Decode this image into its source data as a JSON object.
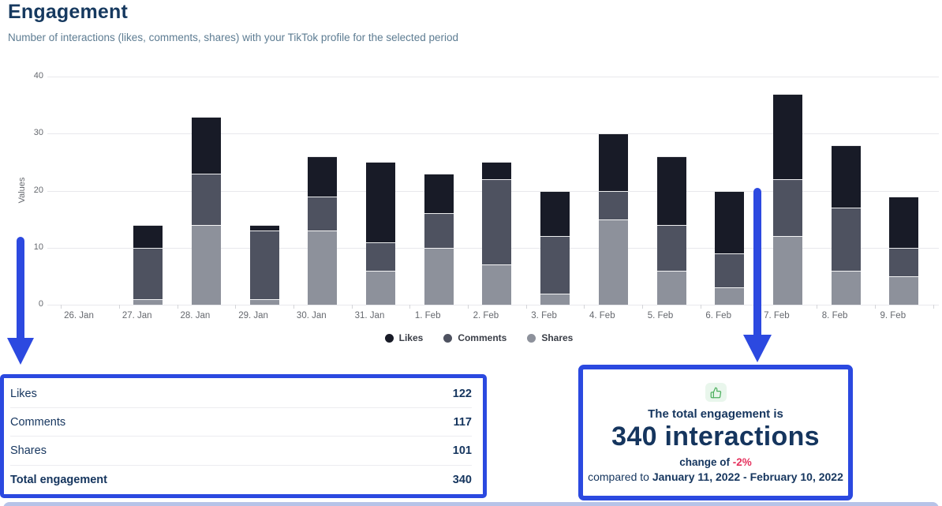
{
  "header": {
    "title": "Engagement",
    "subtitle": "Number of interactions (likes, comments, shares) with your TikTok profile for the selected period"
  },
  "chart_data": {
    "type": "bar",
    "stacked": true,
    "title": "Engagement",
    "xlabel": "",
    "ylabel": "Values",
    "ylim": [
      0,
      40
    ],
    "yticks": [
      0,
      10,
      20,
      30,
      40
    ],
    "grid": true,
    "legend_position": "bottom",
    "categories": [
      "26. Jan",
      "27. Jan",
      "28. Jan",
      "29. Jan",
      "30. Jan",
      "31. Jan",
      "1. Feb",
      "2. Feb",
      "3. Feb",
      "4. Feb",
      "5. Feb",
      "6. Feb",
      "7. Feb",
      "8. Feb",
      "9. Feb"
    ],
    "series": [
      {
        "name": "Likes",
        "color": "#181b27",
        "values": [
          0,
          4,
          10,
          1,
          7,
          14,
          7,
          3,
          8,
          10,
          12,
          11,
          15,
          11,
          9
        ]
      },
      {
        "name": "Comments",
        "color": "#4e5260",
        "values": [
          0,
          9,
          9,
          12,
          6,
          5,
          6,
          15,
          10,
          5,
          8,
          6,
          10,
          11,
          5
        ]
      },
      {
        "name": "Shares",
        "color": "#8d919b",
        "values": [
          0,
          1,
          14,
          1,
          13,
          6,
          10,
          7,
          2,
          15,
          6,
          3,
          12,
          6,
          5
        ]
      }
    ],
    "stack_order_bottom_to_top": [
      "Shares",
      "Comments",
      "Likes"
    ],
    "totals_per_category": [
      0,
      14,
      33,
      14,
      26,
      25,
      23,
      25,
      20,
      30,
      26,
      20,
      37,
      28,
      19
    ]
  },
  "summary_table": {
    "rows": [
      {
        "label": "Likes",
        "value": "122"
      },
      {
        "label": "Comments",
        "value": "117"
      },
      {
        "label": "Shares",
        "value": "101"
      }
    ],
    "total": {
      "label": "Total engagement",
      "value": "340"
    }
  },
  "highlight_card": {
    "icon": "thumbs-up-icon",
    "line1": "The total engagement is",
    "headline": "340 interactions",
    "change_prefix": "change of ",
    "change_value": "-2%",
    "compare_prefix": "compared to ",
    "compare_range": "January 11, 2022 - February 10, 2022"
  },
  "colors": {
    "accent_blue": "#2b49e0",
    "navy_text": "#15355e",
    "negative_red": "#e5315d",
    "icon_green": "#4db05f",
    "icon_green_bg": "#e9f6ec",
    "likes": "#181b27",
    "comments": "#4e5260",
    "shares": "#8d919b"
  }
}
